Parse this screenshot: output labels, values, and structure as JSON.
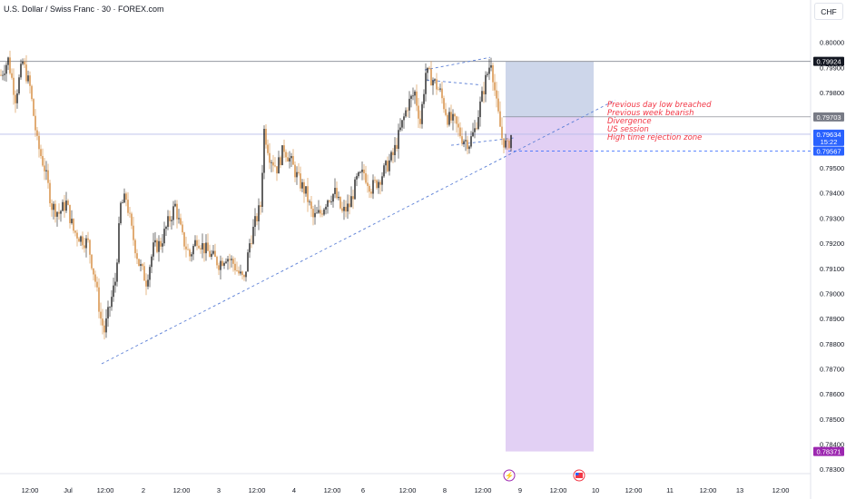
{
  "header": {
    "title": "U.S. Dollar / Swiss Franc · 30 · FOREX.com",
    "currency": "CHF"
  },
  "annotations": [
    "Previous day low breached",
    "Previous week bearish",
    "Divergence",
    "US session",
    "High time rejection zone"
  ],
  "chart_data": {
    "type": "candlestick",
    "ylim": [
      0.7829,
      0.8006
    ],
    "y_ticks": [
      0.8,
      0.799,
      0.798,
      0.797,
      0.796,
      0.795,
      0.794,
      0.793,
      0.792,
      0.791,
      0.79,
      0.789,
      0.788,
      0.787,
      0.786,
      0.785,
      0.784,
      0.783
    ],
    "y_tick_labels": [
      "0.80000",
      "0.79900",
      "0.79800",
      "0.79700",
      "0.79600",
      "0.79500",
      "0.79400",
      "0.79300",
      "0.79200",
      "0.79100",
      "0.79000",
      "0.78900",
      "0.78800",
      "0.78700",
      "0.78600",
      "0.78500",
      "0.78400",
      "0.78300"
    ],
    "x_tick_labels": [
      "12:00",
      "Jul",
      "12:00",
      "2",
      "12:00",
      "3",
      "12:00",
      "4",
      "12:00",
      "6",
      "12:00",
      "8",
      "12:00",
      "9",
      "12:00",
      "10",
      "12:00",
      "11",
      "12:00",
      "13",
      "12:00"
    ],
    "price_labels": [
      {
        "value": 0.79924,
        "text": "0.79924",
        "color": "#131722"
      },
      {
        "value": 0.79703,
        "text": "0.79703",
        "color": "#787b86"
      },
      {
        "value": 0.79634,
        "text": "0.79634",
        "sub": "15:22",
        "color": "#2962ff"
      },
      {
        "value": 0.79567,
        "text": "0.79567",
        "color": "#2962ff"
      },
      {
        "value": 0.78371,
        "text": "0.78371",
        "color": "#9c27b0"
      }
    ],
    "position": {
      "entry": 0.79703,
      "target": 0.78371,
      "stop": 0.79924
    },
    "colors": {
      "up": "#1e1e1e",
      "down": "#d4893a",
      "target_zone": "#e2d0f4",
      "stop_zone": "#cdd6ea",
      "trend": "#5b7fd6"
    },
    "series": [
      {
        "x": 0,
        "v": 0.7987
      },
      {
        "x": 8,
        "v": 0.7993
      },
      {
        "x": 16,
        "v": 0.7978
      },
      {
        "x": 24,
        "v": 0.7992
      },
      {
        "x": 32,
        "v": 0.7982
      },
      {
        "x": 40,
        "v": 0.796
      },
      {
        "x": 48,
        "v": 0.795
      },
      {
        "x": 56,
        "v": 0.7935
      },
      {
        "x": 64,
        "v": 0.7932
      },
      {
        "x": 72,
        "v": 0.7936
      },
      {
        "x": 80,
        "v": 0.7925
      },
      {
        "x": 88,
        "v": 0.7922
      },
      {
        "x": 96,
        "v": 0.792
      },
      {
        "x": 104,
        "v": 0.7905
      },
      {
        "x": 110,
        "v": 0.789
      },
      {
        "x": 114,
        "v": 0.7885
      },
      {
        "x": 120,
        "v": 0.7895
      },
      {
        "x": 126,
        "v": 0.7905
      },
      {
        "x": 132,
        "v": 0.7935
      },
      {
        "x": 138,
        "v": 0.7938
      },
      {
        "x": 144,
        "v": 0.7925
      },
      {
        "x": 152,
        "v": 0.7912
      },
      {
        "x": 160,
        "v": 0.7905
      },
      {
        "x": 168,
        "v": 0.7918
      },
      {
        "x": 176,
        "v": 0.792
      },
      {
        "x": 184,
        "v": 0.7928
      },
      {
        "x": 192,
        "v": 0.7935
      },
      {
        "x": 200,
        "v": 0.7922
      },
      {
        "x": 208,
        "v": 0.7915
      },
      {
        "x": 216,
        "v": 0.7922
      },
      {
        "x": 224,
        "v": 0.7918
      },
      {
        "x": 232,
        "v": 0.7915
      },
      {
        "x": 240,
        "v": 0.7912
      },
      {
        "x": 248,
        "v": 0.7915
      },
      {
        "x": 256,
        "v": 0.7912
      },
      {
        "x": 262,
        "v": 0.7908
      },
      {
        "x": 268,
        "v": 0.7905
      },
      {
        "x": 274,
        "v": 0.792
      },
      {
        "x": 280,
        "v": 0.7928
      },
      {
        "x": 286,
        "v": 0.7935
      },
      {
        "x": 290,
        "v": 0.7965
      },
      {
        "x": 296,
        "v": 0.7955
      },
      {
        "x": 304,
        "v": 0.795
      },
      {
        "x": 312,
        "v": 0.7958
      },
      {
        "x": 320,
        "v": 0.7952
      },
      {
        "x": 328,
        "v": 0.7945
      },
      {
        "x": 336,
        "v": 0.794
      },
      {
        "x": 344,
        "v": 0.793
      },
      {
        "x": 352,
        "v": 0.7932
      },
      {
        "x": 360,
        "v": 0.7938
      },
      {
        "x": 368,
        "v": 0.794
      },
      {
        "x": 376,
        "v": 0.7932
      },
      {
        "x": 384,
        "v": 0.7935
      },
      {
        "x": 392,
        "v": 0.7945
      },
      {
        "x": 400,
        "v": 0.7948
      },
      {
        "x": 408,
        "v": 0.7942
      },
      {
        "x": 416,
        "v": 0.7945
      },
      {
        "x": 424,
        "v": 0.795
      },
      {
        "x": 432,
        "v": 0.7955
      },
      {
        "x": 440,
        "v": 0.7965
      },
      {
        "x": 448,
        "v": 0.7975
      },
      {
        "x": 456,
        "v": 0.798
      },
      {
        "x": 462,
        "v": 0.7968
      },
      {
        "x": 468,
        "v": 0.7988
      },
      {
        "x": 476,
        "v": 0.7985
      },
      {
        "x": 484,
        "v": 0.798
      },
      {
        "x": 492,
        "v": 0.797
      },
      {
        "x": 500,
        "v": 0.7968
      },
      {
        "x": 508,
        "v": 0.7962
      },
      {
        "x": 516,
        "v": 0.796
      },
      {
        "x": 522,
        "v": 0.7965
      },
      {
        "x": 528,
        "v": 0.7975
      },
      {
        "x": 534,
        "v": 0.7985
      },
      {
        "x": 540,
        "v": 0.7993
      },
      {
        "x": 546,
        "v": 0.7975
      },
      {
        "x": 552,
        "v": 0.7962
      },
      {
        "x": 558,
        "v": 0.7958
      },
      {
        "x": 562,
        "v": 0.7963
      }
    ]
  }
}
